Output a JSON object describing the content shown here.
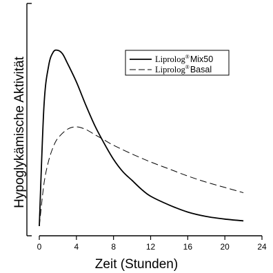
{
  "chart_data": {
    "type": "line",
    "xlabel": "Zeit (Stunden)",
    "ylabel": "Hypoglykämische Aktivität",
    "xlim": [
      0,
      24
    ],
    "x_ticks": [
      "0",
      "4",
      "8",
      "12",
      "16",
      "20",
      "24"
    ],
    "y_ticks_labeled": false,
    "grid": false,
    "legend_position": "top-right",
    "series": [
      {
        "name_base": "Liprolog",
        "name_mark": "®",
        "name_suffix": "Mix50",
        "line_style": "solid",
        "color": "#000000",
        "x": [
          0,
          0.5,
          1,
          1.5,
          2,
          2.5,
          3,
          4,
          5,
          6,
          7,
          8,
          9,
          10,
          11,
          12,
          14,
          16,
          18,
          20,
          22
        ],
        "y": [
          0,
          0.68,
          0.91,
          0.99,
          1.0,
          0.98,
          0.93,
          0.82,
          0.69,
          0.57,
          0.47,
          0.38,
          0.31,
          0.26,
          0.21,
          0.17,
          0.12,
          0.08,
          0.055,
          0.04,
          0.03
        ]
      },
      {
        "name_base": "Liprolog",
        "name_mark": "®",
        "name_suffix": "Basal",
        "line_style": "dashed",
        "color": "#000000",
        "x": [
          0,
          0.5,
          1,
          1.5,
          2,
          3,
          4,
          5,
          6,
          7,
          8,
          10,
          12,
          14,
          16,
          18,
          20,
          22
        ],
        "y": [
          0,
          0.24,
          0.37,
          0.45,
          0.5,
          0.55,
          0.565,
          0.55,
          0.52,
          0.49,
          0.46,
          0.41,
          0.365,
          0.325,
          0.285,
          0.25,
          0.22,
          0.19
        ]
      }
    ]
  }
}
